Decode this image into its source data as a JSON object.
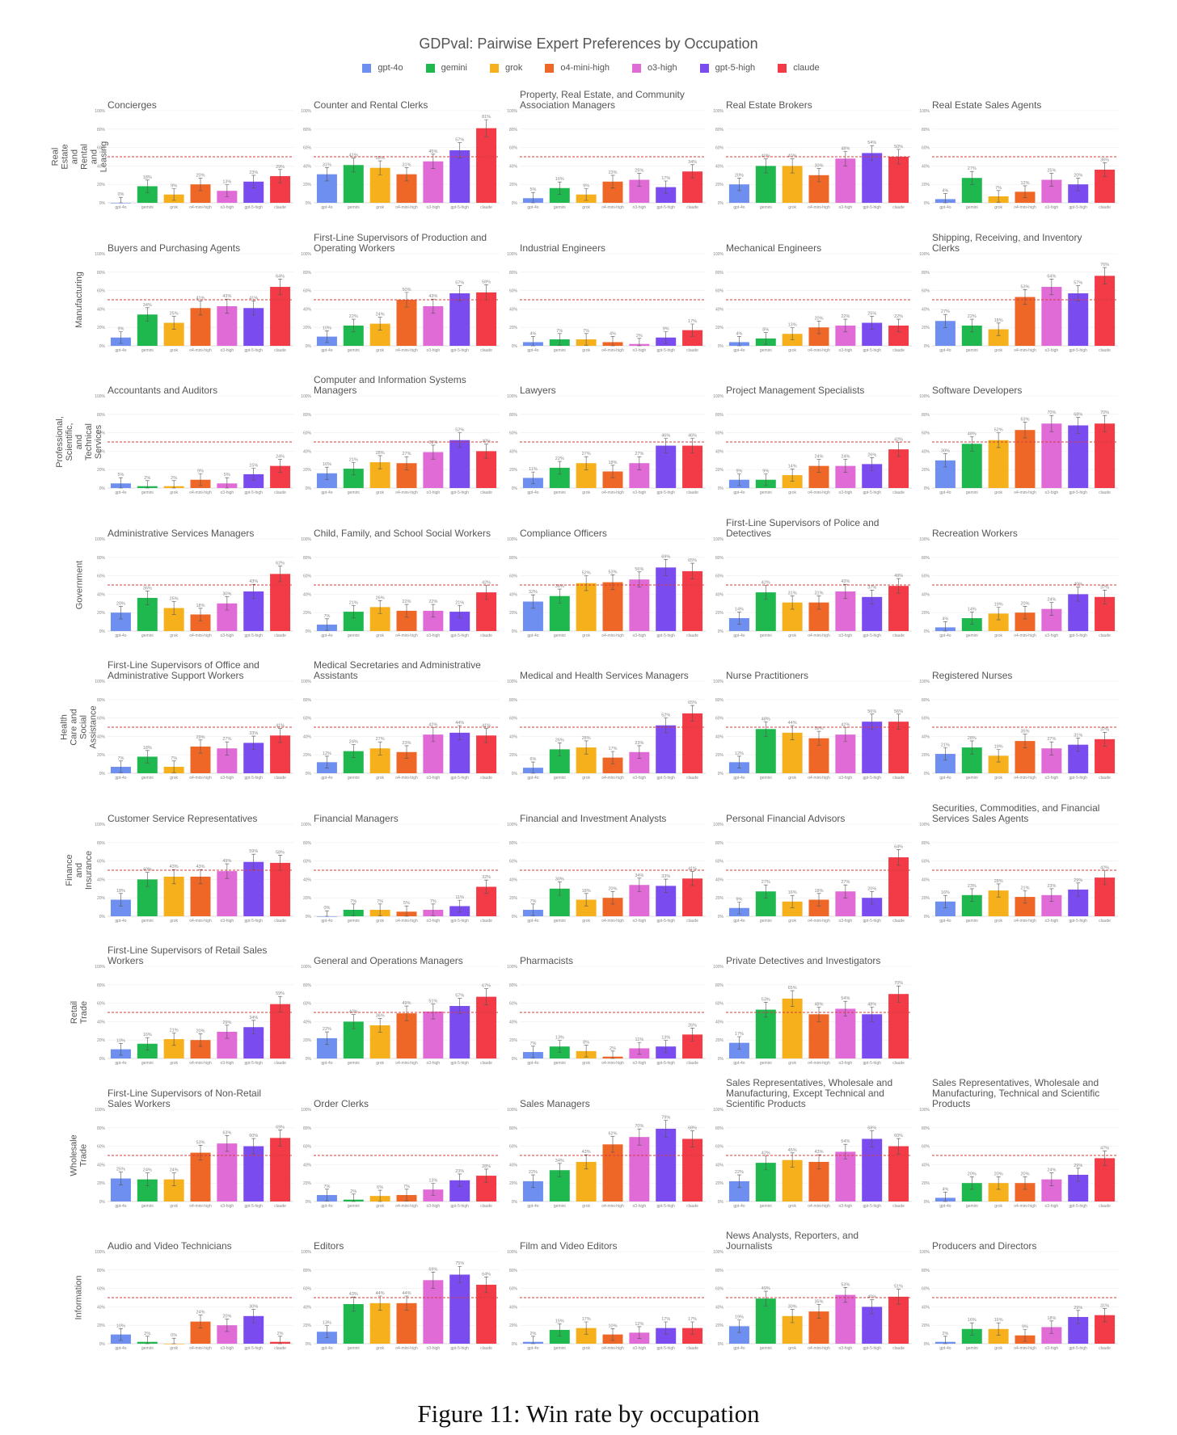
{
  "title": "GDPval: Pairwise Expert Preferences by Occupation",
  "caption": "Figure 11: Win rate by occupation",
  "models": [
    "gpt-4o",
    "gemini",
    "grok",
    "o4-mini-high",
    "o3-high",
    "gpt-5-high",
    "claude"
  ],
  "colors": {
    "gpt-4o": "#6f8ff0",
    "gemini": "#1fb84f",
    "grok": "#f5b01c",
    "o4-mini-high": "#ee6726",
    "o3-high": "#e06ad6",
    "gpt-5-high": "#7a4cf0",
    "claude": "#f23b46",
    "reference_line": "#d43c3c"
  },
  "yticks": [
    "0%",
    "20%",
    "40%",
    "60%",
    "80%",
    "100%"
  ],
  "chart_data": {
    "type": "bar",
    "title": "GDPval: Pairwise Expert Preferences by Occupation",
    "categories": [
      "gpt-4o",
      "gemini",
      "grok",
      "o4-mini-high",
      "o3-high",
      "gpt-5-high",
      "claude"
    ],
    "ylim": [
      0,
      100
    ],
    "reference_line": 50,
    "grid": true,
    "legend_placement": "top-center",
    "rows": [
      {
        "sector": "Real Estate and Rental and Leasing",
        "panels": [
          {
            "title": "Concierges",
            "values": [
              0,
              18,
              9,
              20,
              13,
              23,
              29
            ]
          },
          {
            "title": "Counter and Rental Clerks",
            "values": [
              31,
              41,
              38,
              31,
              45,
              57,
              81
            ]
          },
          {
            "title": "Property, Real Estate, and Community Association Managers",
            "values": [
              5,
              16,
              9,
              23,
              25,
              17,
              34
            ]
          },
          {
            "title": "Real Estate Brokers",
            "values": [
              20,
              40,
              40,
              30,
              48,
              54,
              50
            ]
          },
          {
            "title": "Real Estate Sales Agents",
            "values": [
              4,
              27,
              7,
              12,
              25,
              20,
              36
            ]
          }
        ]
      },
      {
        "sector": "Manufacturing",
        "panels": [
          {
            "title": "Buyers and Purchasing Agents",
            "values": [
              9,
              34,
              25,
              41,
              43,
              41,
              64
            ]
          },
          {
            "title": "First-Line Supervisors of Production and Operating Workers",
            "values": [
              10,
              22,
              24,
              50,
              43,
              57,
              58
            ]
          },
          {
            "title": "Industrial Engineers",
            "values": [
              4,
              7,
              7,
              4,
              2,
              9,
              17
            ]
          },
          {
            "title": "Mechanical Engineers",
            "values": [
              4,
              8,
              13,
              20,
              22,
              25,
              22
            ]
          },
          {
            "title": "Shipping, Receiving, and Inventory Clerks",
            "values": [
              27,
              22,
              18,
              53,
              64,
              57,
              76
            ]
          }
        ]
      },
      {
        "sector": "Professional, Scientific, and Technical Services",
        "panels": [
          {
            "title": "Accountants and Auditors",
            "values": [
              5,
              2,
              2,
              9,
              5,
              15,
              24
            ]
          },
          {
            "title": "Computer and Information Systems Managers",
            "values": [
              16,
              21,
              28,
              27,
              39,
              52,
              40
            ]
          },
          {
            "title": "Lawyers",
            "values": [
              11,
              22,
              27,
              18,
              27,
              46,
              46
            ]
          },
          {
            "title": "Project Management Specialists",
            "values": [
              9,
              9,
              14,
              24,
              24,
              26,
              42
            ]
          },
          {
            "title": "Software Developers",
            "values": [
              30,
              48,
              52,
              63,
              70,
              68,
              70
            ]
          }
        ]
      },
      {
        "sector": "Government",
        "panels": [
          {
            "title": "Administrative Services Managers",
            "values": [
              20,
              36,
              25,
              18,
              30,
              43,
              62
            ]
          },
          {
            "title": "Child, Family, and School Social Workers",
            "values": [
              7,
              21,
              26,
              22,
              22,
              21,
              42
            ]
          },
          {
            "title": "Compliance Officers",
            "values": [
              32,
              38,
              52,
              53,
              56,
              69,
              65
            ]
          },
          {
            "title": "First-Line Supervisors of Police and Detectives",
            "values": [
              14,
              42,
              31,
              31,
              43,
              37,
              49
            ]
          },
          {
            "title": "Recreation Workers",
            "values": [
              4,
              14,
              19,
              20,
              24,
              40,
              37
            ]
          }
        ]
      },
      {
        "sector": "Health Care and Social Assistance",
        "panels": [
          {
            "title": "First-Line Supervisors of Office and Administrative Support Workers",
            "values": [
              7,
              18,
              7,
              29,
              27,
              33,
              41
            ]
          },
          {
            "title": "Medical Secretaries and Administrative Assistants",
            "values": [
              12,
              24,
              27,
              23,
              42,
              44,
              41
            ]
          },
          {
            "title": "Medical and Health Services Managers",
            "values": [
              6,
              26,
              28,
              17,
              23,
              52,
              65
            ]
          },
          {
            "title": "Nurse Practitioners",
            "values": [
              12,
              48,
              44,
              38,
              42,
              56,
              56
            ]
          },
          {
            "title": "Registered Nurses",
            "values": [
              21,
              28,
              19,
              35,
              27,
              31,
              37
            ]
          }
        ]
      },
      {
        "sector": "Finance and Insurance",
        "panels": [
          {
            "title": "Customer Service Representatives",
            "values": [
              18,
              40,
              43,
              43,
              49,
              59,
              58
            ]
          },
          {
            "title": "Financial Managers",
            "values": [
              0,
              7,
              7,
              5,
              7,
              11,
              32
            ]
          },
          {
            "title": "Financial and Investment Analysts",
            "values": [
              7,
              30,
              18,
              20,
              34,
              33,
              41
            ]
          },
          {
            "title": "Personal Financial Advisors",
            "values": [
              9,
              27,
              16,
              18,
              27,
              20,
              64
            ]
          },
          {
            "title": "Securities, Commodities, and Financial Services Sales Agents",
            "values": [
              16,
              23,
              28,
              21,
              23,
              29,
              42
            ]
          }
        ]
      },
      {
        "sector": "Retail Trade",
        "panels": [
          {
            "title": "First-Line Supervisors of Retail Sales Workers",
            "values": [
              10,
              16,
              21,
              20,
              29,
              34,
              59
            ]
          },
          {
            "title": "General and Operations Managers",
            "values": [
              22,
              40,
              36,
              49,
              51,
              57,
              67
            ]
          },
          {
            "title": "Pharmacists",
            "values": [
              7,
              13,
              8,
              2,
              11,
              13,
              26
            ]
          },
          {
            "title": "Private Detectives and Investigators",
            "values": [
              17,
              53,
              65,
              48,
              54,
              48,
              70
            ]
          }
        ]
      },
      {
        "sector": "Wholesale Trade",
        "panels": [
          {
            "title": "First-Line Supervisors of Non-Retail Sales Workers",
            "values": [
              25,
              24,
              24,
              53,
              63,
              60,
              69
            ]
          },
          {
            "title": "Order Clerks",
            "values": [
              7,
              2,
              6,
              7,
              13,
              23,
              28
            ]
          },
          {
            "title": "Sales Managers",
            "values": [
              22,
              34,
              43,
              62,
              70,
              79,
              68
            ]
          },
          {
            "title": "Sales Representatives, Wholesale and Manufacturing, Except Technical and Scientific Products",
            "values": [
              22,
              42,
              45,
              43,
              54,
              68,
              60
            ]
          },
          {
            "title": "Sales Representatives, Wholesale and Manufacturing, Technical and Scientific Products",
            "values": [
              4,
              20,
              20,
              20,
              24,
              29,
              47
            ]
          }
        ]
      },
      {
        "sector": "Information",
        "panels": [
          {
            "title": "Audio and Video Technicians",
            "values": [
              10,
              2,
              0,
              24,
              20,
              30,
              2
            ]
          },
          {
            "title": "Editors",
            "values": [
              13,
              43,
              44,
              44,
              69,
              75,
              64
            ]
          },
          {
            "title": "Film and Video Editors",
            "values": [
              2,
              15,
              17,
              10,
              12,
              17,
              17
            ]
          },
          {
            "title": "News Analysts, Reporters, and Journalists",
            "values": [
              19,
              49,
              30,
              35,
              53,
              40,
              51
            ]
          },
          {
            "title": "Producers and Directors",
            "values": [
              2,
              16,
              16,
              9,
              18,
              29,
              31
            ]
          }
        ]
      }
    ]
  }
}
